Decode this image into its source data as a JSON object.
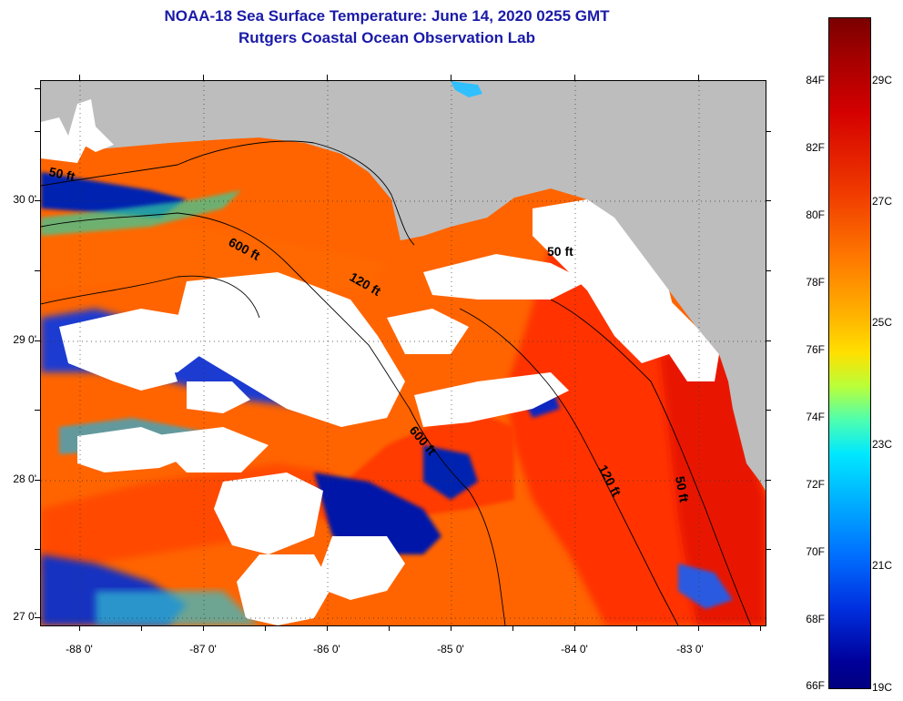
{
  "title": {
    "line1": "NOAA-18 Sea Surface Temperature:  June 14, 2020 0255 GMT",
    "line2": "Rutgers Coastal Ocean Observation Lab"
  },
  "map": {
    "lat_labels": [
      "30 0'",
      "29 0'",
      "28 0'",
      "27 0'"
    ],
    "lon_labels": [
      "-88 0'",
      "-87 0'",
      "-86 0'",
      "-85 0'",
      "-84 0'",
      "-83 0'"
    ],
    "contour_labels": [
      "50 ft",
      "600 ft",
      "120 ft",
      "50 ft",
      "600 ft",
      "120 ft",
      "50 ft"
    ],
    "colors": {
      "land": "#bdbdbd",
      "cloud": "#ffffff",
      "warm_sst": "#ff4a00",
      "hot_sst": "#e01000",
      "cold_sst": "#0018a8"
    }
  },
  "colorbar": {
    "f_labels": [
      "84F",
      "82F",
      "80F",
      "78F",
      "76F",
      "74F",
      "72F",
      "70F",
      "68F",
      "66F"
    ],
    "c_labels": [
      "29C",
      "27C",
      "25C",
      "23C",
      "21C",
      "19C"
    ]
  }
}
